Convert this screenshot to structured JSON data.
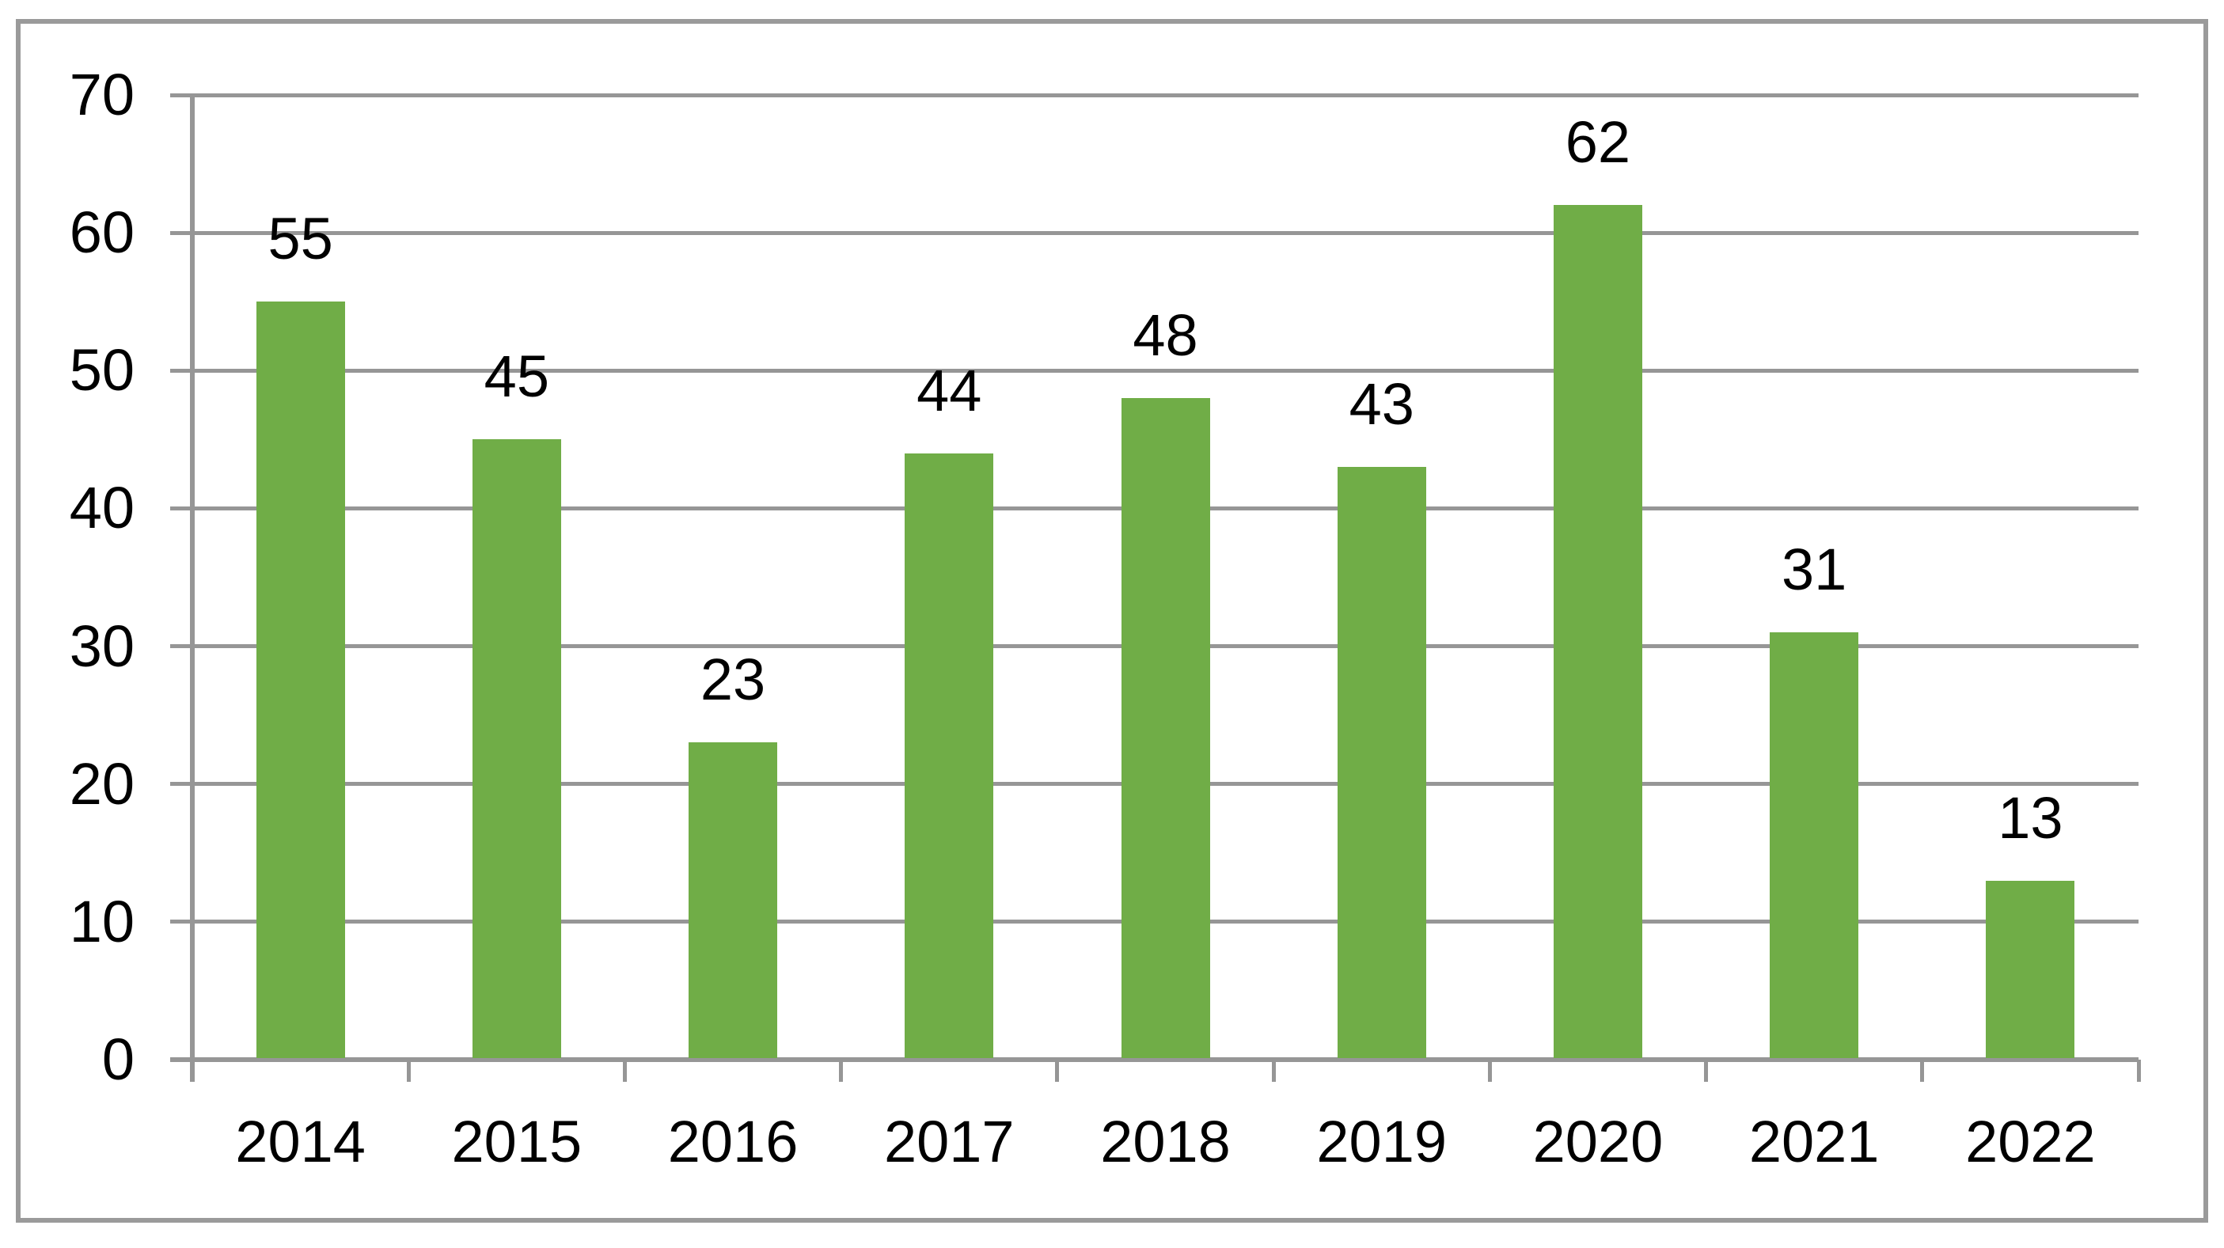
{
  "chart_data": {
    "type": "bar",
    "title": "",
    "xlabel": "",
    "ylabel": "",
    "categories": [
      "2014",
      "2015",
      "2016",
      "2017",
      "2018",
      "2019",
      "2020",
      "2021",
      "2022"
    ],
    "values": [
      55,
      45,
      23,
      44,
      48,
      43,
      62,
      31,
      13
    ],
    "data_labels_shown": true,
    "ylim": [
      0,
      70
    ],
    "y_ticks": [
      0,
      10,
      20,
      30,
      40,
      50,
      60,
      70
    ],
    "grid": true,
    "legend": false,
    "colors": {
      "bar": "#70AD47",
      "gridline": "#969696",
      "axis": "#969696",
      "border": "#9A9A9A",
      "text": "#000000",
      "background": "#FFFFFF"
    }
  }
}
